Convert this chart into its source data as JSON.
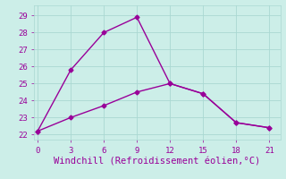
{
  "line1_x": [
    0,
    3,
    6,
    9,
    12,
    15,
    18,
    21
  ],
  "line1_y": [
    22.2,
    25.8,
    28.0,
    28.9,
    25.0,
    24.4,
    22.7,
    22.4
  ],
  "line2_x": [
    0,
    3,
    6,
    9,
    12,
    15,
    18,
    21
  ],
  "line2_y": [
    22.2,
    23.0,
    23.7,
    24.5,
    25.0,
    24.4,
    22.7,
    22.4
  ],
  "line_color": "#990099",
  "background_color": "#cceee8",
  "grid_color": "#aad8d2",
  "xlabel": "Windchill (Refroidissement éolien,°C)",
  "xlabel_color": "#990099",
  "xticks": [
    0,
    3,
    6,
    9,
    12,
    15,
    18,
    21
  ],
  "yticks": [
    22,
    23,
    24,
    25,
    26,
    27,
    28,
    29
  ],
  "ylim": [
    21.7,
    29.6
  ],
  "xlim": [
    -0.3,
    22.0
  ],
  "tick_color": "#990099",
  "marker": "D",
  "markersize": 2.5,
  "linewidth": 1.0,
  "xlabel_fontsize": 7.5,
  "tick_fontsize": 6.5
}
